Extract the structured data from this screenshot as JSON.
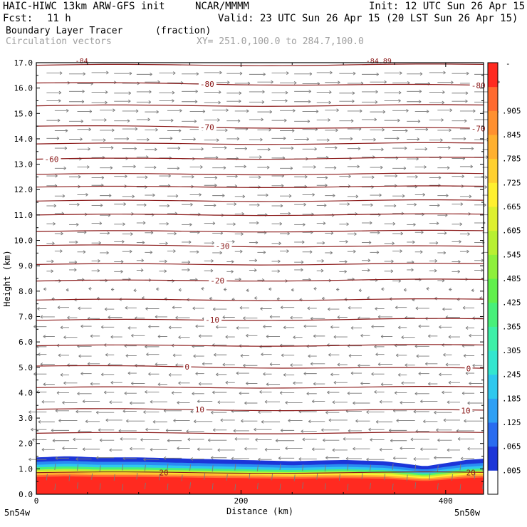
{
  "header": {
    "model": "HAIC-HIWC 13km ARW-GFS init",
    "org": "NCAR/MMMM",
    "init": "Init: 12 UTC Sun 26 Apr 15",
    "fcst_label": "Fcst:",
    "fcst_value": "11 h",
    "valid": "Valid: 23 UTC Sun 26 Apr 15 (20 LST Sun 26 Apr 15)",
    "field_name": "Boundary Layer Tracer",
    "field_units": "(fraction)",
    "vector_label": "Circulation vectors",
    "xy_range": "XY= 251.0,100.0 to 284.7,100.0"
  },
  "chart_data": {
    "type": "heatmap",
    "title": "Boundary Layer Tracer",
    "units": "(fraction)",
    "xlabel": "Distance (km)",
    "ylabel": "Height (km)",
    "xlim": [
      0,
      437
    ],
    "ylim": [
      0.0,
      17.0
    ],
    "x_ticks": [
      0,
      200,
      400
    ],
    "y_ticks": [
      "0.0",
      "1.0",
      "2.0",
      "3.0",
      "4.0",
      "5.0",
      "6.0",
      "7.0",
      "8.0",
      "9.0",
      "10.0",
      "11.0",
      "12.0",
      "13.0",
      "14.0",
      "15.0",
      "16.0",
      "17.0"
    ],
    "x_end_labels": [
      "5n54w",
      "5n50w"
    ],
    "colorbar": {
      "labels": [
        ".005",
        ".065",
        ".125",
        ".185",
        ".245",
        ".305",
        ".365",
        ".425",
        ".485",
        ".545",
        ".605",
        ".665",
        ".725",
        ".785",
        ".845",
        ".905"
      ],
      "colors": [
        "#ffffff",
        "#1c35d8",
        "#2a6cf0",
        "#2fa0f5",
        "#2fc8ee",
        "#34e6cf",
        "#3ef0a8",
        "#48f07a",
        "#62f04c",
        "#8ef03c",
        "#b8f032",
        "#def030",
        "#fff030",
        "#ffd030",
        "#ffb030",
        "#ff9030",
        "#ff6a30",
        "#ff2a20"
      ],
      "top_label": "-"
    },
    "tracer_layer": [
      {
        "x": 0,
        "top": 1.45
      },
      {
        "x": 30,
        "top": 1.5
      },
      {
        "x": 60,
        "top": 1.45
      },
      {
        "x": 100,
        "top": 1.45
      },
      {
        "x": 150,
        "top": 1.4
      },
      {
        "x": 200,
        "top": 1.35
      },
      {
        "x": 250,
        "top": 1.3
      },
      {
        "x": 300,
        "top": 1.35
      },
      {
        "x": 340,
        "top": 1.3
      },
      {
        "x": 380,
        "top": 1.1
      },
      {
        "x": 420,
        "top": 1.35
      },
      {
        "x": 437,
        "top": 1.4
      }
    ],
    "isotherms": [
      {
        "value": 20,
        "y": [
          0.85,
          0.85
        ],
        "labels": [
          "20",
          "20"
        ]
      },
      {
        "value": 10,
        "y": [
          3.35,
          3.3
        ],
        "labels": [
          "10",
          "10"
        ]
      },
      {
        "value": 0,
        "y": [
          5.05,
          4.95
        ],
        "labels": [
          "0",
          "0"
        ]
      },
      {
        "value": -10,
        "y": [
          6.85,
          6.9
        ],
        "labels": [
          "-10"
        ]
      },
      {
        "value": -20,
        "y": [
          8.4,
          8.45
        ],
        "labels": [
          "-20"
        ]
      },
      {
        "value": -30,
        "y": [
          9.8,
          9.75
        ],
        "labels": [
          "-30"
        ]
      },
      {
        "value": -60,
        "y": [
          13.2,
          13.25
        ],
        "labels": [
          "-60"
        ]
      },
      {
        "value": -70,
        "y": [
          14.5,
          14.4
        ],
        "labels": [
          "-70",
          "-70"
        ]
      },
      {
        "value": -80,
        "y": [
          16.2,
          16.1
        ],
        "labels": [
          "-80",
          "-80"
        ]
      }
    ],
    "isotherm_levels_unlabeled": [
      2.4,
      4.2,
      5.85,
      7.65,
      9.05,
      10.35,
      11.0,
      11.55,
      12.1,
      12.6,
      13.8,
      15.3,
      16.9
    ],
    "top_cut_labels": [
      "-84",
      "-84.89"
    ],
    "vectors": {
      "easterly_below_km": 7.5,
      "westerly_above_km": 8.2
    }
  }
}
